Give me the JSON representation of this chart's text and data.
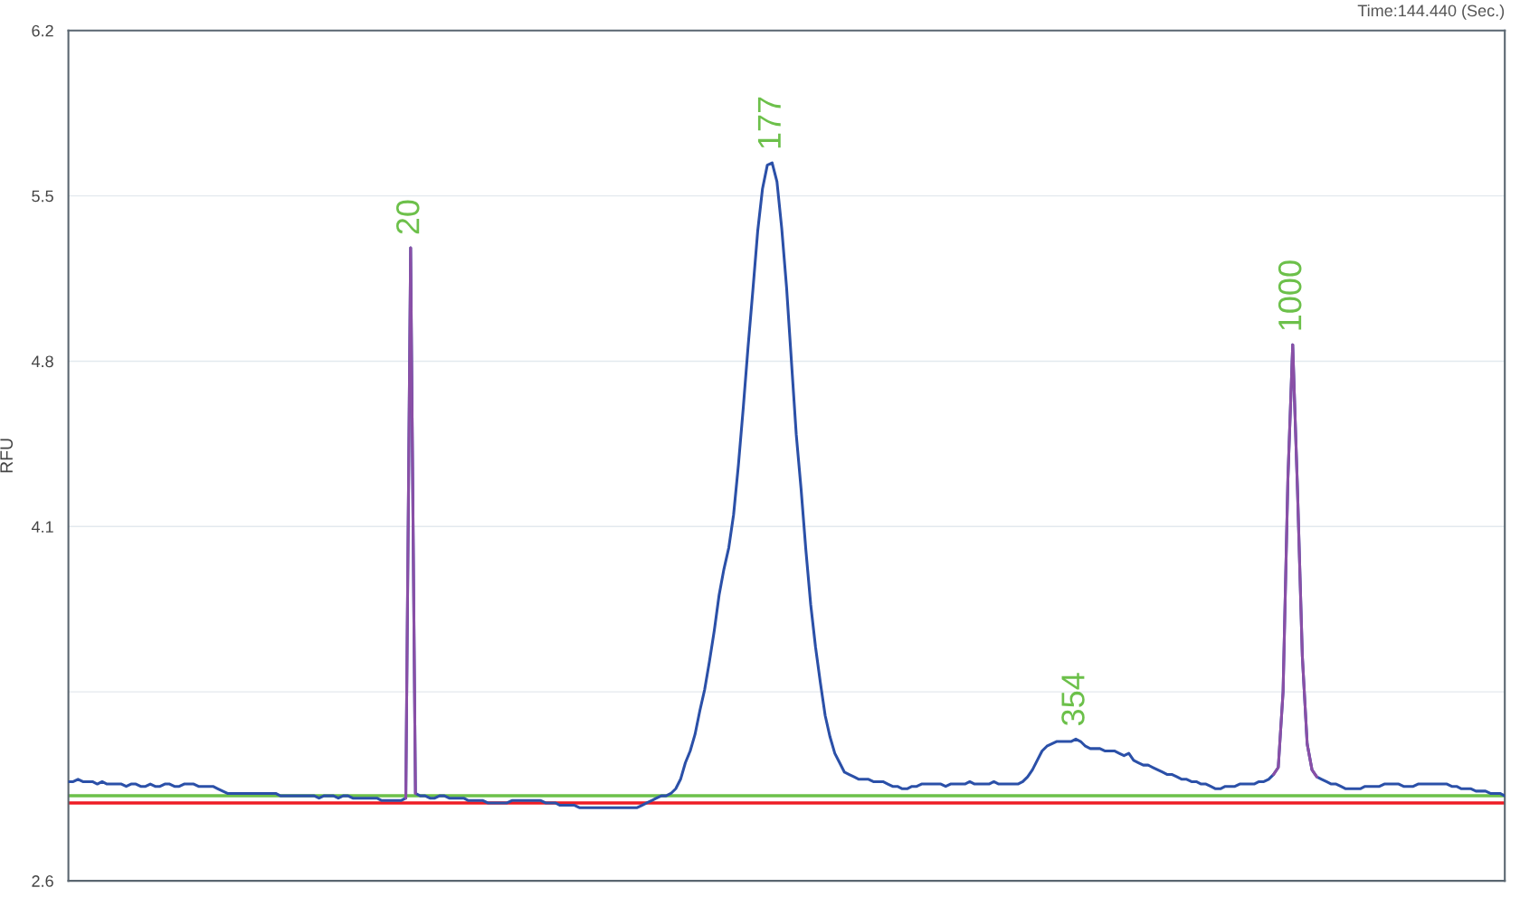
{
  "chart_data": {
    "type": "line",
    "ylabel": "RFU",
    "annotations": [
      "Time:144.440 (Sec.)",
      {
        "text": "20",
        "y": 5.28
      },
      {
        "text": "177",
        "y": 5.64
      },
      {
        "text": "354",
        "y": 3.2
      },
      {
        "text": "1000",
        "y": 4.87
      }
    ],
    "ylim": [
      2.6,
      6.2
    ],
    "yticks": [
      2.6,
      {
        "value": 3.4,
        "label": null
      },
      4.1,
      4.8,
      5.5,
      6.2
    ],
    "tick_labels": "y",
    "grid": "y",
    "legend": false,
    "marker": "none",
    "line_style": "solid",
    "ref_lines": [
      {
        "axis": "y",
        "value": 2.96,
        "color": "#6cc04a"
      },
      {
        "axis": "y",
        "value": 2.93,
        "color": "#ee1c25"
      }
    ],
    "categories": [
      null,
      null,
      null,
      null,
      null,
      null,
      null,
      null,
      null,
      null,
      null,
      null,
      null,
      null,
      null,
      null,
      null,
      null,
      null,
      null,
      null,
      null,
      null,
      null,
      null,
      null,
      null,
      null,
      null,
      null,
      null,
      null,
      null,
      null,
      null,
      null,
      null,
      null,
      null,
      null,
      null,
      null,
      null,
      null,
      null,
      null,
      null,
      null,
      null,
      null,
      null,
      null,
      null,
      null,
      null,
      null,
      null,
      null,
      null,
      null,
      null,
      null,
      null,
      null,
      null,
      null,
      null,
      null,
      null,
      null,
      null,
      null,
      null,
      null,
      null,
      null,
      null,
      null,
      null,
      null,
      null,
      null,
      null,
      null,
      null,
      null,
      null,
      null,
      null,
      null,
      null,
      null,
      null,
      null,
      null,
      null,
      null,
      null,
      null,
      null,
      null,
      null,
      null,
      null,
      null,
      null,
      null,
      null,
      null,
      null,
      null,
      null,
      null,
      null,
      null,
      null,
      null,
      null,
      null,
      null,
      null,
      null,
      null,
      null,
      null,
      null,
      null,
      null,
      null,
      null,
      null,
      null,
      null,
      null,
      null,
      null,
      null,
      null,
      null,
      null,
      null,
      null,
      null,
      null,
      null,
      null,
      null,
      null,
      null,
      null,
      null,
      null,
      null,
      null,
      null,
      null,
      null,
      null,
      null,
      null,
      null,
      null,
      null,
      null,
      null,
      null,
      null,
      null,
      null,
      null,
      null,
      null,
      null,
      null,
      null,
      null,
      null,
      null,
      null,
      null,
      null,
      null,
      null,
      null,
      null,
      null,
      null,
      null,
      null,
      null,
      null,
      null,
      null,
      null,
      null,
      null,
      null,
      null,
      null,
      null,
      null,
      null,
      null,
      null,
      null,
      null,
      null,
      null,
      null,
      null,
      null,
      null,
      null,
      null,
      null,
      null,
      null,
      null,
      null,
      null,
      null,
      null,
      null,
      null,
      null,
      null,
      null,
      null,
      null,
      null,
      null,
      null,
      null,
      null,
      null,
      null,
      null,
      null,
      null,
      null,
      null,
      null,
      null,
      null,
      null,
      null,
      null,
      null,
      null,
      null,
      null,
      null,
      null,
      null,
      null,
      null,
      null,
      null,
      null,
      null,
      null,
      null,
      null,
      null,
      null,
      null,
      null,
      null,
      null,
      null,
      null,
      null,
      null,
      null,
      null,
      null,
      null,
      null,
      null,
      null,
      null,
      null,
      null,
      null,
      null,
      null,
      null,
      null,
      null,
      null,
      null,
      null,
      null,
      null,
      null,
      null,
      null,
      null,
      null
    ],
    "series": [
      {
        "color": "#2b50a8",
        "values": [
          3.02,
          3.02,
          3.03,
          3.02,
          3.02,
          3.02,
          3.01,
          3.02,
          3.01,
          3.01,
          3.01,
          3.01,
          3.0,
          3.01,
          3.01,
          3.0,
          3.0,
          3.01,
          3.0,
          3.0,
          3.01,
          3.01,
          3.0,
          3.0,
          3.01,
          3.01,
          3.01,
          3.0,
          3.0,
          3.0,
          3.0,
          2.99,
          2.98,
          2.97,
          2.97,
          2.97,
          2.97,
          2.97,
          2.97,
          2.97,
          2.97,
          2.97,
          2.97,
          2.97,
          2.96,
          2.96,
          2.96,
          2.96,
          2.96,
          2.96,
          2.96,
          2.96,
          2.95,
          2.96,
          2.96,
          2.96,
          2.95,
          2.96,
          2.96,
          2.95,
          2.95,
          2.95,
          2.95,
          2.95,
          2.95,
          2.94,
          2.94,
          2.94,
          2.94,
          2.94,
          2.95,
          5.28,
          2.97,
          2.96,
          2.96,
          2.95,
          2.95,
          2.96,
          2.96,
          2.95,
          2.95,
          2.95,
          2.95,
          2.94,
          2.94,
          2.94,
          2.94,
          2.93,
          2.93,
          2.93,
          2.93,
          2.93,
          2.94,
          2.94,
          2.94,
          2.94,
          2.94,
          2.94,
          2.94,
          2.93,
          2.93,
          2.93,
          2.92,
          2.92,
          2.92,
          2.92,
          2.91,
          2.91,
          2.91,
          2.91,
          2.91,
          2.91,
          2.91,
          2.91,
          2.91,
          2.91,
          2.91,
          2.91,
          2.91,
          2.92,
          2.93,
          2.94,
          2.95,
          2.96,
          2.96,
          2.97,
          2.99,
          3.03,
          3.1,
          3.15,
          3.22,
          3.32,
          3.41,
          3.53,
          3.66,
          3.81,
          3.92,
          4.01,
          4.15,
          4.36,
          4.6,
          4.86,
          5.1,
          5.35,
          5.53,
          5.63,
          5.64,
          5.56,
          5.36,
          5.11,
          4.8,
          4.49,
          4.26,
          4.0,
          3.77,
          3.59,
          3.44,
          3.3,
          3.21,
          3.14,
          3.1,
          3.06,
          3.05,
          3.04,
          3.03,
          3.03,
          3.03,
          3.02,
          3.02,
          3.02,
          3.01,
          3.0,
          3.0,
          2.99,
          2.99,
          3.0,
          3.0,
          3.01,
          3.01,
          3.01,
          3.01,
          3.01,
          3.0,
          3.01,
          3.01,
          3.01,
          3.01,
          3.02,
          3.01,
          3.01,
          3.01,
          3.01,
          3.02,
          3.01,
          3.01,
          3.01,
          3.01,
          3.01,
          3.02,
          3.04,
          3.07,
          3.11,
          3.15,
          3.17,
          3.18,
          3.19,
          3.19,
          3.19,
          3.19,
          3.2,
          3.19,
          3.17,
          3.16,
          3.16,
          3.16,
          3.15,
          3.15,
          3.15,
          3.14,
          3.13,
          3.14,
          3.11,
          3.1,
          3.09,
          3.09,
          3.08,
          3.07,
          3.06,
          3.05,
          3.05,
          3.04,
          3.03,
          3.03,
          3.02,
          3.02,
          3.01,
          3.01,
          3.0,
          2.99,
          2.99,
          3.0,
          3.0,
          3.0,
          3.01,
          3.01,
          3.01,
          3.01,
          3.02,
          3.02,
          3.03,
          3.05,
          3.08,
          3.4,
          4.3,
          4.87,
          4.25,
          3.55,
          3.18,
          3.07,
          3.04,
          3.03,
          3.02,
          3.01,
          3.01,
          3.0,
          2.99,
          2.99,
          2.99,
          2.99,
          3.0,
          3.0,
          3.0,
          3.0,
          3.01,
          3.01,
          3.01,
          3.01,
          3.0,
          3.0,
          3.0,
          3.01,
          3.01,
          3.01,
          3.01,
          3.01,
          3.01,
          3.01,
          3.0,
          3.0,
          2.99,
          2.99,
          2.99,
          2.98,
          2.98,
          2.98,
          2.97,
          2.97,
          2.97,
          2.96
        ],
        "value_labels": [
          null,
          null,
          null,
          null,
          null,
          null,
          null,
          null,
          null,
          null,
          null,
          null,
          null,
          null,
          null,
          null,
          null,
          null,
          null,
          null,
          null,
          null,
          null,
          null,
          null,
          null,
          null,
          null,
          null,
          null,
          null,
          null,
          null,
          null,
          null,
          null,
          null,
          null,
          null,
          null,
          null,
          null,
          null,
          null,
          null,
          null,
          null,
          null,
          null,
          null,
          null,
          null,
          null,
          null,
          null,
          null,
          null,
          null,
          null,
          null,
          null,
          null,
          null,
          null,
          null,
          null,
          null,
          null,
          null,
          null,
          null,
          null,
          null,
          null,
          null,
          null,
          null,
          null,
          null,
          null,
          null,
          null,
          null,
          null,
          null,
          null,
          null,
          null,
          null,
          null,
          null,
          null,
          null,
          null,
          null,
          null,
          null,
          null,
          null,
          null,
          null,
          null,
          null,
          null,
          null,
          null,
          null,
          null,
          null,
          null,
          null,
          null,
          null,
          null,
          null,
          null,
          null,
          null,
          null,
          null,
          null,
          null,
          null,
          null,
          null,
          null,
          null,
          null,
          null,
          null,
          null,
          null,
          null,
          null,
          null,
          null,
          null,
          null,
          null,
          null,
          null,
          null,
          null,
          null,
          null,
          null,
          null,
          null,
          null,
          null,
          null,
          null,
          null,
          null,
          null,
          null,
          null,
          null,
          null,
          null,
          null,
          null,
          null,
          null,
          null,
          null,
          null,
          null,
          null,
          null,
          null,
          null,
          null,
          null,
          null,
          null,
          null,
          null,
          null,
          null,
          null,
          null,
          null,
          null,
          null,
          null,
          null,
          null,
          null,
          null,
          null,
          null,
          null,
          null,
          null,
          null,
          null,
          null,
          null,
          null,
          null,
          null,
          null,
          null,
          null,
          null,
          null,
          null,
          null,
          null,
          null,
          null,
          null,
          null,
          null,
          null,
          null,
          null,
          null,
          null,
          null,
          null,
          null,
          null,
          null,
          null,
          null,
          null,
          null,
          null,
          null,
          null,
          null,
          null,
          null,
          null,
          null,
          null,
          null,
          null,
          null,
          null,
          null,
          null,
          null,
          null,
          null,
          null,
          null,
          null,
          null,
          null,
          null,
          null,
          null,
          null,
          null,
          null,
          null,
          null,
          null,
          null,
          null,
          null,
          null,
          null,
          null,
          null,
          null,
          null,
          null,
          null,
          null,
          null,
          null,
          null,
          null,
          null,
          null,
          null,
          null,
          null,
          null,
          null,
          null,
          null,
          null,
          null,
          null,
          null,
          null,
          null,
          null,
          null,
          null,
          null,
          null,
          null,
          null
        ]
      },
      {
        "color": "#8a4fa6",
        "values": [
          null,
          null,
          null,
          null,
          null,
          null,
          null,
          null,
          null,
          null,
          null,
          null,
          null,
          null,
          null,
          null,
          null,
          null,
          null,
          null,
          null,
          null,
          null,
          null,
          null,
          null,
          null,
          null,
          null,
          null,
          null,
          null,
          null,
          null,
          null,
          null,
          null,
          null,
          null,
          null,
          null,
          null,
          null,
          null,
          null,
          null,
          null,
          null,
          null,
          null,
          null,
          null,
          null,
          null,
          null,
          null,
          null,
          null,
          null,
          null,
          null,
          null,
          null,
          null,
          null,
          null,
          null,
          null,
          null,
          null,
          2.95,
          5.28,
          2.97,
          null,
          null,
          null,
          null,
          null,
          null,
          null,
          null,
          null,
          null,
          null,
          null,
          null,
          null,
          null,
          null,
          null,
          null,
          null,
          null,
          null,
          null,
          null,
          null,
          null,
          null,
          null,
          null,
          null,
          null,
          null,
          null,
          null,
          null,
          null,
          null,
          null,
          null,
          null,
          null,
          null,
          null,
          null,
          null,
          null,
          null,
          null,
          null,
          null,
          null,
          null,
          null,
          null,
          null,
          null,
          null,
          null,
          null,
          null,
          null,
          null,
          null,
          null,
          null,
          null,
          null,
          null,
          null,
          null,
          null,
          null,
          null,
          null,
          null,
          null,
          null,
          null,
          null,
          null,
          null,
          null,
          null,
          null,
          null,
          null,
          null,
          null,
          null,
          null,
          null,
          null,
          null,
          null,
          null,
          null,
          null,
          null,
          null,
          null,
          null,
          null,
          null,
          null,
          null,
          null,
          null,
          null,
          null,
          null,
          null,
          null,
          null,
          null,
          null,
          null,
          null,
          null,
          null,
          null,
          null,
          null,
          null,
          null,
          null,
          null,
          null,
          null,
          null,
          null,
          null,
          null,
          null,
          null,
          null,
          null,
          null,
          null,
          null,
          null,
          null,
          null,
          null,
          null,
          null,
          null,
          null,
          null,
          null,
          null,
          null,
          null,
          null,
          null,
          null,
          null,
          null,
          null,
          null,
          null,
          null,
          null,
          null,
          null,
          null,
          null,
          null,
          null,
          null,
          null,
          null,
          null,
          null,
          null,
          null,
          null,
          null,
          null,
          3.05,
          3.08,
          3.4,
          4.3,
          4.87,
          4.25,
          3.55,
          3.18,
          3.07,
          3.04,
          null,
          null,
          null,
          null,
          null,
          null,
          null,
          null,
          null,
          null,
          null,
          null,
          null,
          null,
          null,
          null,
          null,
          null,
          null,
          null,
          null,
          null,
          null,
          null,
          null,
          null,
          null,
          null,
          null,
          null,
          null,
          null,
          null,
          null,
          null,
          null,
          null,
          null,
          null
        ],
        "value_labels": [
          null,
          null,
          null,
          null,
          null,
          null,
          null,
          null,
          null,
          null,
          null,
          null,
          null,
          null,
          null,
          null,
          null,
          null,
          null,
          null,
          null,
          null,
          null,
          null,
          null,
          null,
          null,
          null,
          null,
          null,
          null,
          null,
          null,
          null,
          null,
          null,
          null,
          null,
          null,
          null,
          null,
          null,
          null,
          null,
          null,
          null,
          null,
          null,
          null,
          null,
          null,
          null,
          null,
          null,
          null,
          null,
          null,
          null,
          null,
          null,
          null,
          null,
          null,
          null,
          null,
          null,
          null,
          null,
          null,
          null,
          null,
          null,
          null,
          null,
          null,
          null,
          null,
          null,
          null,
          null,
          null,
          null,
          null,
          null,
          null,
          null,
          null,
          null,
          null,
          null,
          null,
          null,
          null,
          null,
          null,
          null,
          null,
          null,
          null,
          null,
          null,
          null,
          null,
          null,
          null,
          null,
          null,
          null,
          null,
          null,
          null,
          null,
          null,
          null,
          null,
          null,
          null,
          null,
          null,
          null,
          null,
          null,
          null,
          null,
          null,
          null,
          null,
          null,
          null,
          null,
          null,
          null,
          null,
          null,
          null,
          null,
          null,
          null,
          null,
          null,
          null,
          null,
          null,
          null,
          null,
          null,
          null,
          null,
          null,
          null,
          null,
          null,
          null,
          null,
          null,
          null,
          null,
          null,
          null,
          null,
          null,
          null,
          null,
          null,
          null,
          null,
          null,
          null,
          null,
          null,
          null,
          null,
          null,
          null,
          null,
          null,
          null,
          null,
          null,
          null,
          null,
          null,
          null,
          null,
          null,
          null,
          null,
          null,
          null,
          null,
          null,
          null,
          null,
          null,
          null,
          null,
          null,
          null,
          null,
          null,
          null,
          null,
          null,
          null,
          null,
          null,
          null,
          null,
          null,
          null,
          null,
          null,
          null,
          null,
          null,
          null,
          null,
          null,
          null,
          null,
          null,
          null,
          null,
          null,
          null,
          null,
          null,
          null,
          null,
          null,
          null,
          null,
          null,
          null,
          null,
          null,
          null,
          null,
          null,
          null,
          null,
          null,
          null,
          null,
          null,
          null,
          null,
          null,
          null,
          null,
          null,
          null,
          null,
          null,
          null,
          null,
          null,
          null,
          null,
          null,
          null,
          null,
          null,
          null,
          null,
          null,
          null,
          null,
          null,
          null,
          null,
          null,
          null,
          null,
          null,
          null,
          null,
          null,
          null,
          null,
          null,
          null,
          null,
          null,
          null,
          null,
          null,
          null,
          null,
          null,
          null,
          null,
          null,
          null,
          null,
          null,
          null,
          null,
          null
        ]
      }
    ]
  }
}
